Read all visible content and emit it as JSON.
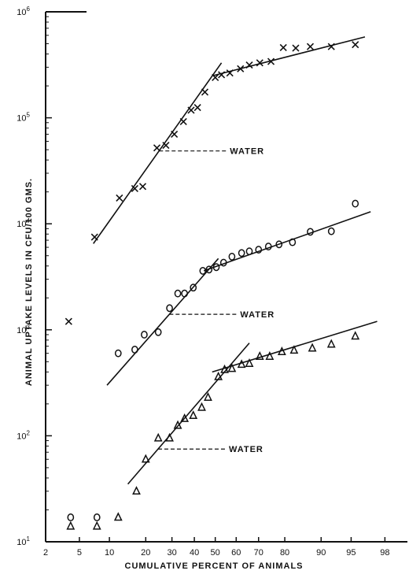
{
  "chart_data": {
    "type": "scatter",
    "title": "",
    "xlabel": "CUMULATIVE PERCENT OF ANIMALS",
    "ylabel": "ANIMAL UPTAKE LEVELS IN CFU/100 GMS.",
    "x_scale": "probability",
    "y_scale": "log",
    "xlim": [
      2,
      99
    ],
    "ylim": [
      10,
      1000000
    ],
    "x_ticks": [
      2,
      5,
      10,
      20,
      30,
      40,
      50,
      60,
      70,
      80,
      90,
      95,
      98
    ],
    "x_tick_labels": [
      "2",
      "5",
      "10",
      "20",
      "30",
      "40",
      "50",
      "60",
      "70",
      "80",
      "90",
      "95",
      "98"
    ],
    "y_ticks": [
      10,
      100,
      1000,
      10000,
      100000,
      1000000
    ],
    "y_tick_labels": [
      {
        "base": "10",
        "exp": "1"
      },
      {
        "base": "10",
        "exp": "2"
      },
      {
        "base": "10",
        "exp": "3"
      },
      {
        "base": "10",
        "exp": "4"
      },
      {
        "base": "10",
        "exp": "5"
      },
      {
        "base": "10",
        "exp": "6"
      }
    ],
    "grid": false,
    "series": [
      {
        "marker": "x",
        "points": [
          [
            3.8,
            1200
          ],
          [
            7.2,
            7500
          ],
          [
            12.3,
            17500
          ],
          [
            16.5,
            21500
          ],
          [
            19,
            22500
          ],
          [
            24,
            52000
          ],
          [
            27.5,
            55000
          ],
          [
            31,
            70000
          ],
          [
            35,
            92000
          ],
          [
            38.5,
            118000
          ],
          [
            41.5,
            125000
          ],
          [
            45,
            175000
          ],
          [
            50,
            240000
          ],
          [
            53,
            255000
          ],
          [
            57,
            265000
          ],
          [
            62,
            290000
          ],
          [
            66,
            315000
          ],
          [
            70.5,
            330000
          ],
          [
            75,
            340000
          ],
          [
            79.5,
            460000
          ],
          [
            83.5,
            455000
          ],
          [
            87.5,
            470000
          ],
          [
            92,
            470000
          ],
          [
            95.5,
            490000
          ]
        ],
        "fit_lines": [
          [
            [
              7,
              6500
            ],
            [
              53,
              330000
            ]
          ],
          [
            [
              49,
              250000
            ],
            [
              96.5,
              580000
            ]
          ]
        ],
        "annotation": "WATER"
      },
      {
        "marker": "o",
        "points": [
          [
            4,
            17
          ],
          [
            7.6,
            17
          ],
          [
            12,
            600
          ],
          [
            16.5,
            650
          ],
          [
            19.5,
            900
          ],
          [
            24.5,
            950
          ],
          [
            29,
            1600
          ],
          [
            32.5,
            2200
          ],
          [
            35.5,
            2200
          ],
          [
            39.5,
            2500
          ],
          [
            44,
            3600
          ],
          [
            47,
            3700
          ],
          [
            50.5,
            3900
          ],
          [
            54,
            4300
          ],
          [
            58,
            4900
          ],
          [
            62.5,
            5300
          ],
          [
            66,
            5500
          ],
          [
            70,
            5700
          ],
          [
            74,
            6100
          ],
          [
            78,
            6400
          ],
          [
            82.5,
            6700
          ],
          [
            87.5,
            8400
          ],
          [
            92,
            8500
          ],
          [
            95.5,
            15500
          ]
        ],
        "fit_lines": [
          [
            [
              9.5,
              300
            ],
            [
              51.5,
              4700
            ]
          ],
          [
            [
              44.5,
              3600
            ],
            [
              97,
              13000
            ]
          ]
        ],
        "annotation": "WATER"
      },
      {
        "marker": "triangle",
        "points": [
          [
            4,
            14
          ],
          [
            7.6,
            14
          ],
          [
            12,
            17
          ],
          [
            17,
            30
          ],
          [
            20,
            60
          ],
          [
            24.5,
            95
          ],
          [
            29,
            95
          ],
          [
            32.5,
            125
          ],
          [
            35.5,
            145
          ],
          [
            39.5,
            155
          ],
          [
            43.5,
            185
          ],
          [
            46.5,
            230
          ],
          [
            51.5,
            360
          ],
          [
            54.5,
            420
          ],
          [
            58,
            430
          ],
          [
            62.5,
            470
          ],
          [
            66,
            480
          ],
          [
            70.5,
            560
          ],
          [
            74.5,
            560
          ],
          [
            79,
            620
          ],
          [
            83,
            640
          ],
          [
            88,
            670
          ],
          [
            92,
            730
          ],
          [
            95.5,
            870
          ]
        ],
        "fit_lines": [
          [
            [
              14.5,
              35
            ],
            [
              66,
              750
            ]
          ],
          [
            [
              48.5,
              400
            ],
            [
              97.5,
              1200
            ]
          ]
        ],
        "annotation": "WATER"
      }
    ]
  }
}
